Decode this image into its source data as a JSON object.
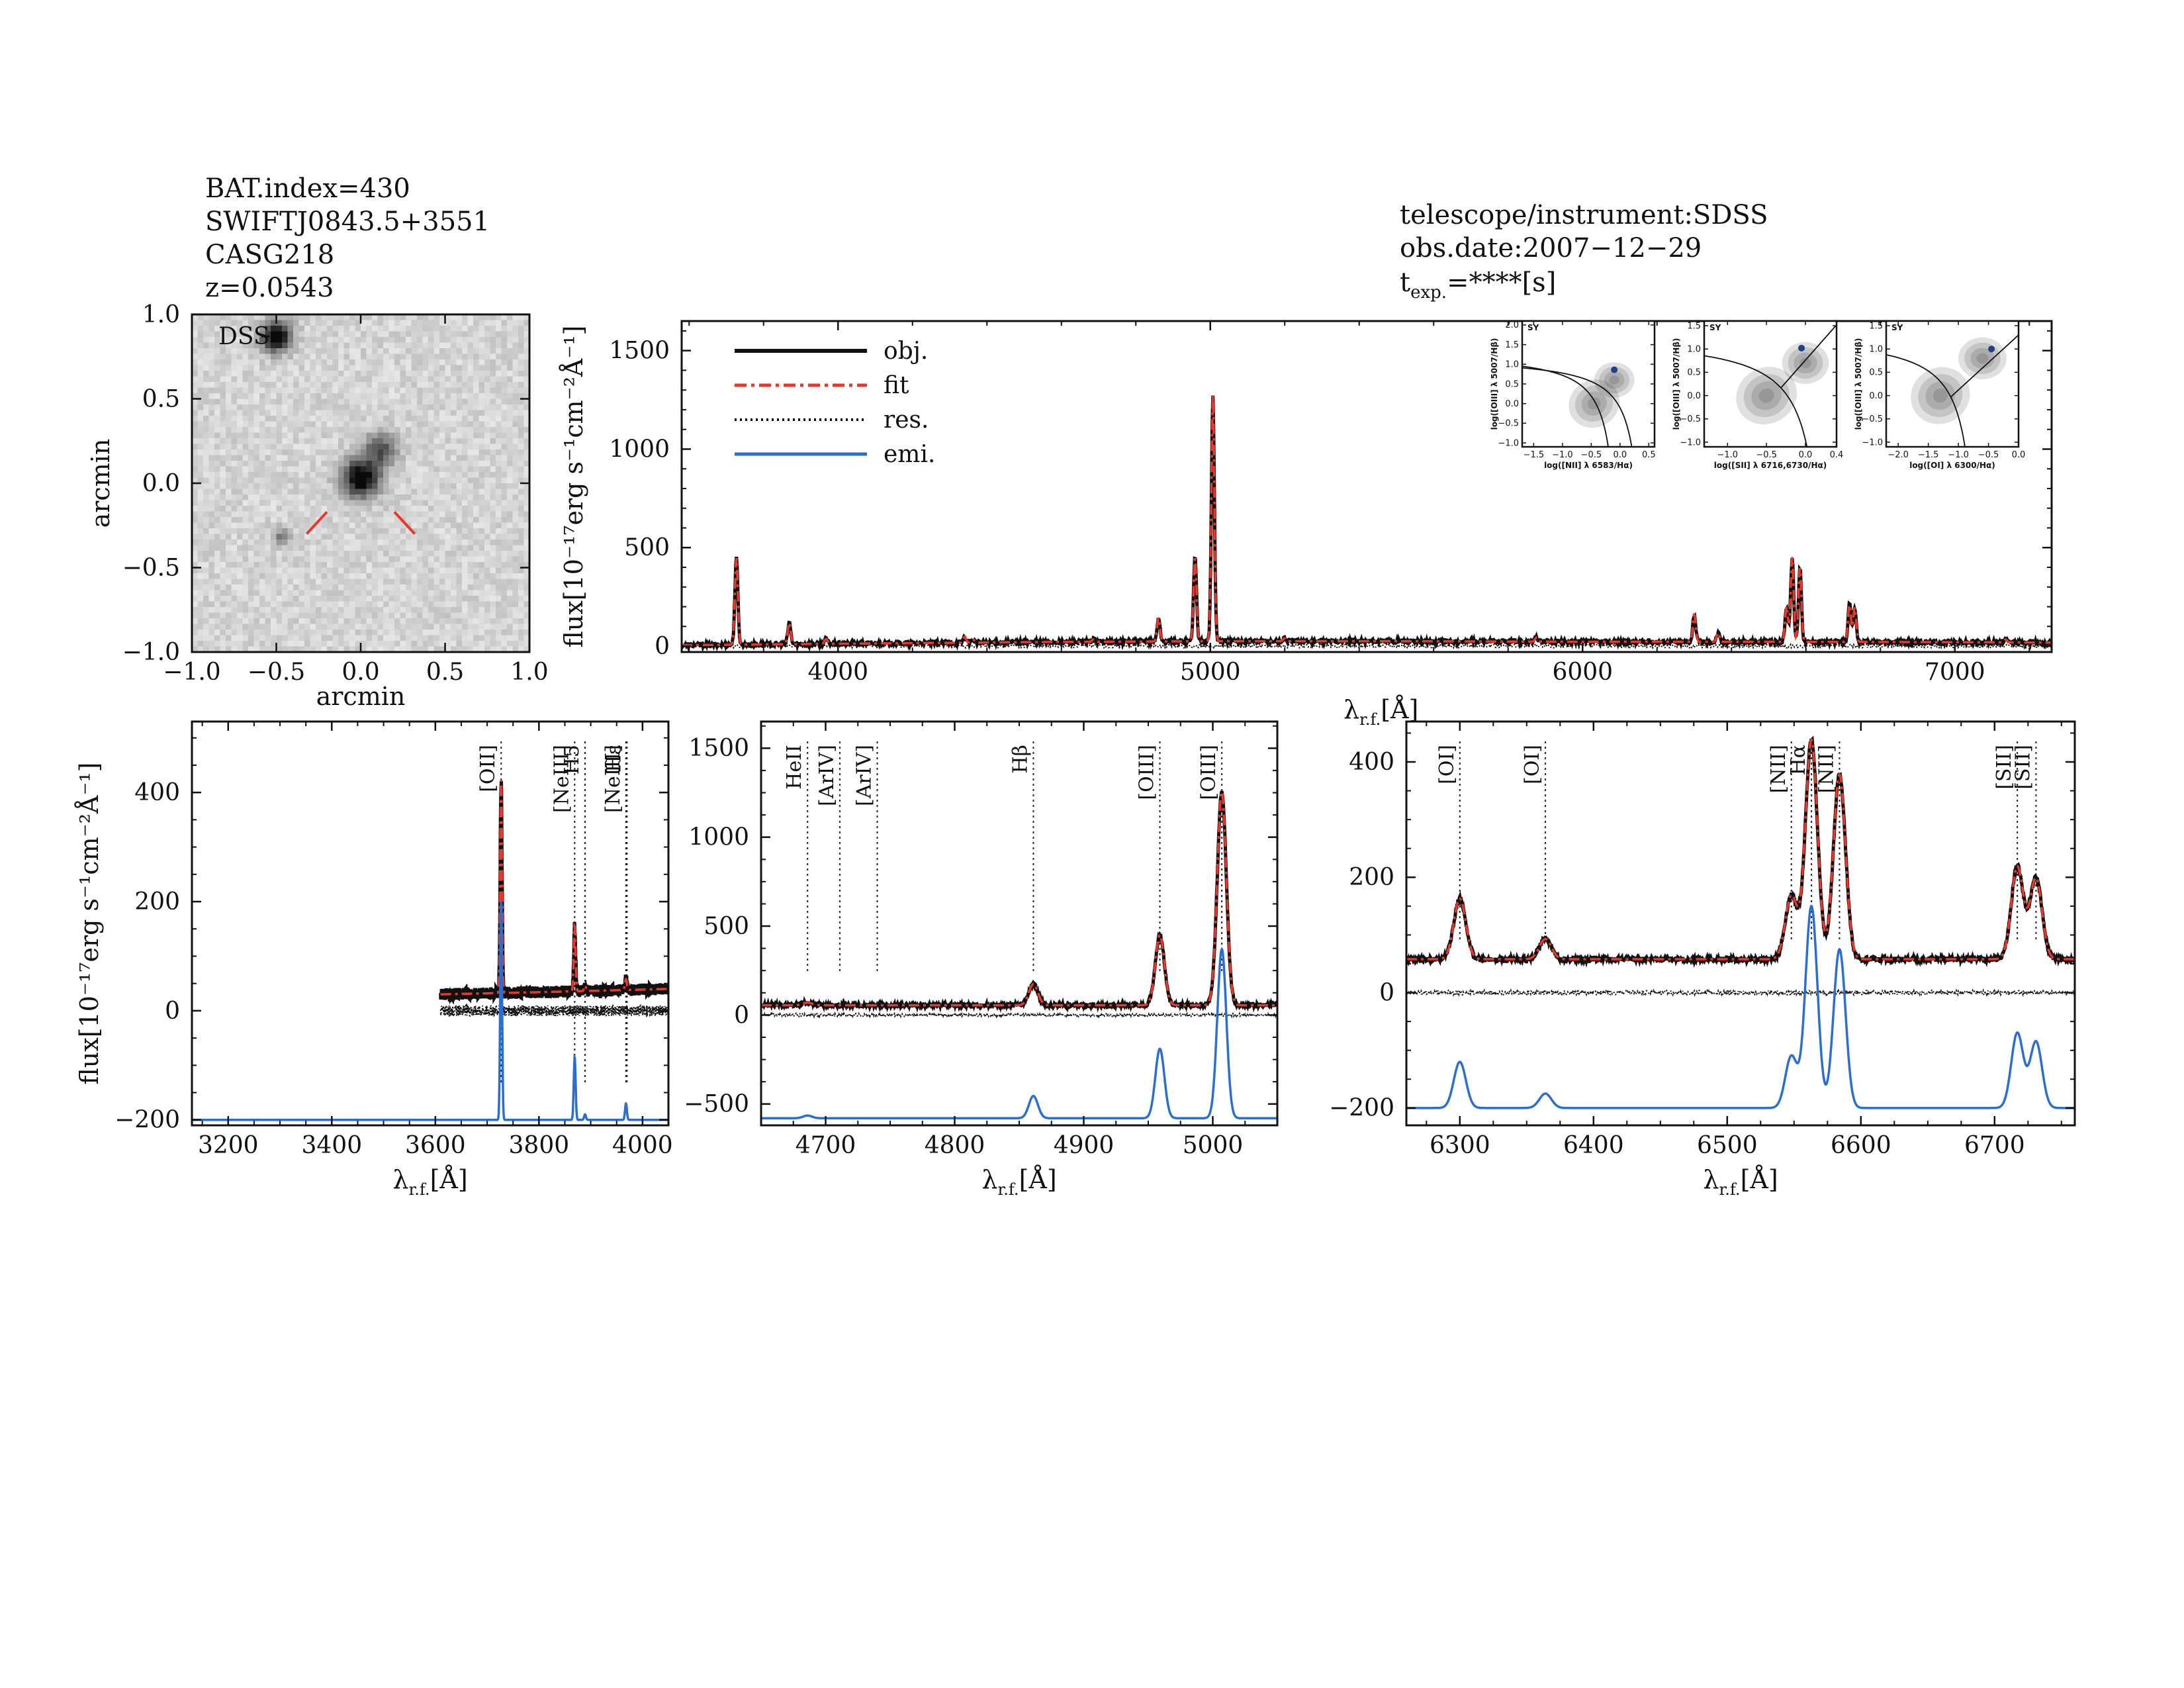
{
  "header_left": [
    "BAT.index=430",
    "SWIFTJ0843.5+3551",
    "CASG218",
    "z=0.0543"
  ],
  "header_right": {
    "line1": "telescope/instrument:SDSS",
    "line2": "obs.date:2007−12−29",
    "line3_main": "t",
    "line3_sub": "exp.",
    "line3_rest": "=****[s]"
  },
  "colors": {
    "obj": "#111111",
    "fit": "#e8382b",
    "res": "#111111",
    "emi": "#2a6fd0",
    "ion_red": "#e8382b"
  },
  "chart_data": [
    {
      "type": "image",
      "panel": "dss-cutout",
      "label": "DSS",
      "xlabel": "arcmin",
      "ylabel": "arcmin",
      "xlim": [
        -1.0,
        1.0
      ],
      "ylim": [
        -1.0,
        1.0
      ],
      "xticks": [
        "−1.0",
        "−0.5",
        "0.0",
        "0.5",
        "1.0"
      ],
      "yticks": [
        "−1.0",
        "−0.5",
        "0.0",
        "0.5",
        "1.0"
      ],
      "sources": [
        {
          "x": -0.5,
          "y": 0.87,
          "brightness": 1.0,
          "size": 0.09
        },
        {
          "x": 0.0,
          "y": 0.03,
          "brightness": 1.0,
          "size": 0.11
        },
        {
          "x": 0.12,
          "y": 0.2,
          "brightness": 0.55,
          "size": 0.1
        },
        {
          "x": -0.47,
          "y": -0.32,
          "brightness": 0.45,
          "size": 0.05
        }
      ]
    },
    {
      "type": "line",
      "panel": "full-spectrum",
      "xlabel_main": "λ",
      "xlabel_sub": "r.f.",
      "xlabel_rest": "[Å]",
      "ylabel": "flux[10⁻¹⁷erg s⁻¹cm⁻²Å⁻¹]",
      "xlim": [
        3580,
        7260
      ],
      "ylim": [
        -30,
        1650
      ],
      "xticks": [
        4000,
        5000,
        6000,
        7000
      ],
      "yticks": [
        0,
        500,
        1000,
        1500
      ],
      "legend": [
        "obj.",
        "fit",
        "res.",
        "emi."
      ],
      "continuum": [
        [
          3600,
          5
        ],
        [
          4000,
          12
        ],
        [
          4500,
          20
        ],
        [
          5000,
          25
        ],
        [
          5500,
          25
        ],
        [
          6000,
          22
        ],
        [
          6500,
          22
        ],
        [
          7000,
          20
        ],
        [
          7250,
          18
        ]
      ],
      "lines": [
        {
          "x": 3727,
          "peak": 440
        },
        {
          "x": 3869,
          "peak": 110
        },
        {
          "x": 3968,
          "peak": 25
        },
        {
          "x": 4340,
          "peak": 30
        },
        {
          "x": 4363,
          "peak": 15
        },
        {
          "x": 4686,
          "peak": 12
        },
        {
          "x": 4861,
          "peak": 120
        },
        {
          "x": 4959,
          "peak": 430
        },
        {
          "x": 5007,
          "peak": 1250
        },
        {
          "x": 5200,
          "peak": 15
        },
        {
          "x": 5876,
          "peak": 20
        },
        {
          "x": 6300,
          "peak": 140
        },
        {
          "x": 6364,
          "peak": 45
        },
        {
          "x": 6548,
          "peak": 180
        },
        {
          "x": 6563,
          "peak": 430
        },
        {
          "x": 6584,
          "peak": 380
        },
        {
          "x": 6717,
          "peak": 190
        },
        {
          "x": 6731,
          "peak": 175
        },
        {
          "x": 7136,
          "peak": 15
        }
      ]
    },
    {
      "type": "scatter",
      "panel": "bpt-nii",
      "tag": "SY",
      "xlabel": "log([NII] λ 6583/Hα)",
      "ylabel": "log([OIII] λ 5007/Hβ)",
      "xlim": [
        -1.7,
        0.6
      ],
      "ylim": [
        -1.1,
        2.1
      ],
      "xticks": [
        "−1.5",
        "−1.0",
        "−0.5",
        "0.0",
        "0.5"
      ],
      "yticks": [
        "−1.0",
        "−0.5",
        "0.0",
        "0.5",
        "1.0",
        "1.5",
        "2.0"
      ],
      "point": [
        -0.1,
        0.86
      ]
    },
    {
      "type": "scatter",
      "panel": "bpt-sii",
      "tag": "SY",
      "xlabel": "log([SII] λ 6716,6730/Hα)",
      "ylabel": "log([OIII] λ 5007/Hβ)",
      "xlim": [
        -1.3,
        0.4
      ],
      "ylim": [
        -1.1,
        1.6
      ],
      "xticks": [
        "−1.0",
        "−0.5",
        "0.0",
        "0.4"
      ],
      "yticks": [
        "−1.0",
        "−0.5",
        "0.0",
        "0.5",
        "1.0",
        "1.5"
      ],
      "point": [
        -0.05,
        1.02
      ]
    },
    {
      "type": "scatter",
      "panel": "bpt-oi",
      "tag": "SY",
      "xlabel": "log([OI] λ 6300/Hα)",
      "ylabel": "log([OIII] λ 5007/Hβ)",
      "xlim": [
        -2.2,
        0.0
      ],
      "ylim": [
        -1.1,
        1.6
      ],
      "xticks": [
        "−2.0",
        "−1.5",
        "−1.0",
        "−0.5",
        "0.0"
      ],
      "yticks": [
        "−1.0",
        "−0.5",
        "0.0",
        "0.5",
        "1.0",
        "1.5"
      ],
      "point": [
        -0.45,
        1.0
      ]
    },
    {
      "type": "line",
      "panel": "zoom-oii",
      "xlabel_main": "λ",
      "xlabel_sub": "r.f.",
      "xlabel_rest": "[Å]",
      "ylabel": "flux[10⁻¹⁷erg s⁻¹cm⁻²Å⁻¹]",
      "xlim": [
        3130,
        4050
      ],
      "ylim": [
        -210,
        530
      ],
      "xticks": [
        3200,
        3400,
        3600,
        3800,
        4000
      ],
      "yticks": [
        -200,
        0,
        200,
        400
      ],
      "data_start": 3610,
      "continuum": [
        [
          3610,
          30
        ],
        [
          3800,
          34
        ],
        [
          4050,
          40
        ]
      ],
      "emi_offset": -200,
      "lines": [
        {
          "x": 3727,
          "peak": 390,
          "emi": 400
        },
        {
          "x": 3869,
          "peak": 120,
          "emi": 115
        },
        {
          "x": 3889,
          "peak": 10,
          "emi": 10
        },
        {
          "x": 3968,
          "peak": 20,
          "emi": 30
        }
      ],
      "markers": [
        {
          "x": 3727,
          "label": "[OII]",
          "color": "black"
        },
        {
          "x": 3869,
          "label": "[NeIII]",
          "color": "black"
        },
        {
          "x": 3889,
          "label": "H5",
          "color": "black"
        },
        {
          "x": 3968,
          "label": "[NeIII]",
          "color": "black"
        },
        {
          "x": 3970,
          "label": "Hε",
          "color": "black"
        }
      ]
    },
    {
      "type": "line",
      "panel": "zoom-hb-oiii",
      "xlabel_main": "λ",
      "xlabel_sub": "r.f.",
      "xlabel_rest": "[Å]",
      "xlim": [
        4650,
        5050
      ],
      "ylim": [
        -620,
        1650
      ],
      "xticks": [
        4700,
        4800,
        4900,
        5000
      ],
      "yticks": [
        -500,
        0,
        500,
        1000,
        1500
      ],
      "continuum": [
        [
          4650,
          55
        ],
        [
          5050,
          55
        ]
      ],
      "emi_offset": -580,
      "lines": [
        {
          "x": 4686,
          "peak": 15,
          "emi": 15
        },
        {
          "x": 4861,
          "peak": 120,
          "emi": 125
        },
        {
          "x": 4959,
          "peak": 395,
          "emi": 390
        },
        {
          "x": 5007,
          "peak": 1200,
          "emi": 950
        }
      ],
      "markers": [
        {
          "x": 4686,
          "label": "HeII",
          "color": "black"
        },
        {
          "x": 4711,
          "label": "[ArIV]",
          "color": "red"
        },
        {
          "x": 4740,
          "label": "[ArIV]",
          "color": "red"
        },
        {
          "x": 4861,
          "label": "Hβ",
          "color": "black"
        },
        {
          "x": 4959,
          "label": "[OIII]",
          "color": "black"
        },
        {
          "x": 5007,
          "label": "[OIII]",
          "color": "black"
        }
      ]
    },
    {
      "type": "line",
      "panel": "zoom-ha-nii",
      "xlabel_main": "λ",
      "xlabel_sub": "r.f.",
      "xlabel_rest": "[Å]",
      "xlim": [
        6260,
        6760
      ],
      "ylim": [
        -230,
        470
      ],
      "xticks": [
        6300,
        6400,
        6500,
        6600,
        6700
      ],
      "yticks": [
        -200,
        0,
        200,
        400
      ],
      "continuum": [
        [
          6260,
          58
        ],
        [
          6760,
          58
        ]
      ],
      "emi_offset": -200,
      "lines": [
        {
          "x": 6300,
          "peak": 105,
          "emi": 80
        },
        {
          "x": 6364,
          "peak": 35,
          "emi": 25
        },
        {
          "x": 6548,
          "peak": 110,
          "emi": 90
        },
        {
          "x": 6563,
          "peak": 380,
          "emi": 350
        },
        {
          "x": 6584,
          "peak": 320,
          "emi": 275
        },
        {
          "x": 6717,
          "peak": 160,
          "emi": 130
        },
        {
          "x": 6731,
          "peak": 140,
          "emi": 115
        }
      ],
      "markers": [
        {
          "x": 6300,
          "label": "[OI]",
          "color": "black"
        },
        {
          "x": 6364,
          "label": "[OI]",
          "color": "black"
        },
        {
          "x": 6548,
          "label": "[NII]",
          "color": "black"
        },
        {
          "x": 6563,
          "label": "Hα",
          "color": "black"
        },
        {
          "x": 6584,
          "label": "[NII]",
          "color": "black"
        },
        {
          "x": 6717,
          "label": "[SII]",
          "color": "black"
        },
        {
          "x": 6731,
          "label": "[SII]",
          "color": "black"
        }
      ]
    }
  ]
}
